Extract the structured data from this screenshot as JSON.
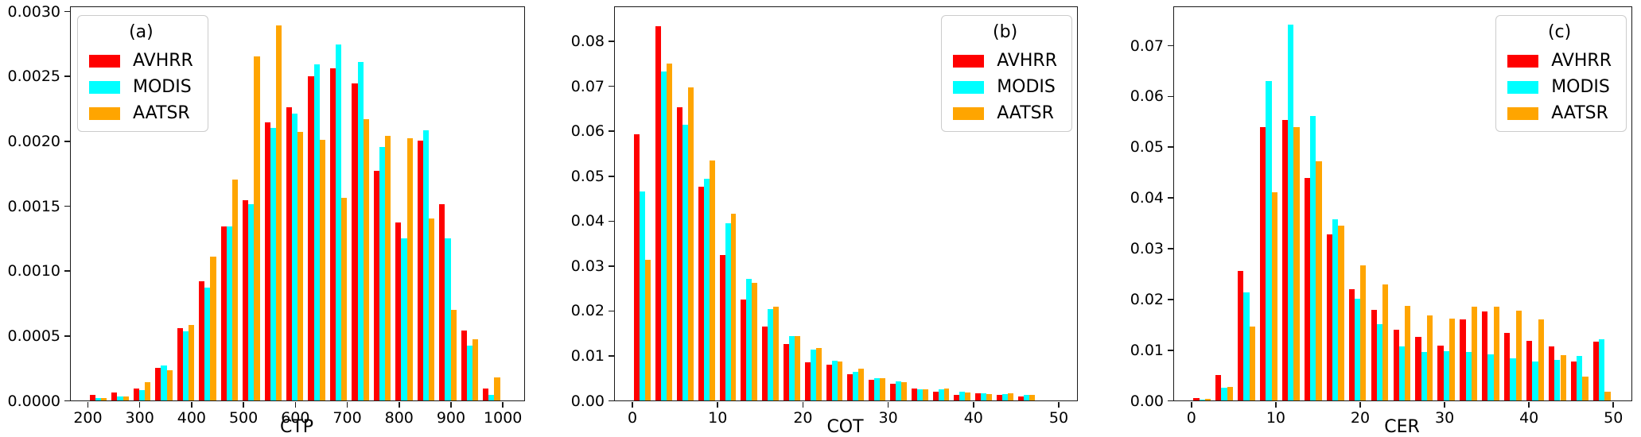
{
  "figure": {
    "background": "#ffffff",
    "series": [
      {
        "name": "AVHRR",
        "color": "#ff0000"
      },
      {
        "name": "MODIS",
        "color": "#00ffff"
      },
      {
        "name": "AATSR",
        "color": "#ffa500"
      }
    ]
  },
  "chart_data": [
    {
      "type": "bar",
      "panel_label": "(a)",
      "xlabel": "CTP",
      "legend": {
        "title": "(a)",
        "entries": [
          "AVHRR",
          "MODIS",
          "AATSR"
        ],
        "position": "top-left"
      },
      "grid": false,
      "xlim": [
        168,
        1042
      ],
      "ylim": [
        0,
        0.00303
      ],
      "xticks": [
        200,
        300,
        400,
        500,
        600,
        700,
        800,
        900,
        1000
      ],
      "xtick_labels": [
        "200",
        "300",
        "400",
        "500",
        "600",
        "700",
        "800",
        "900",
        "1000"
      ],
      "yticks": [
        0,
        0.0005,
        0.001,
        0.0015,
        0.002,
        0.0025,
        0.003
      ],
      "ytick_labels": [
        "0.0000",
        "0.0005",
        "0.0010",
        "0.0015",
        "0.0020",
        "0.0025",
        "0.0030"
      ],
      "bin_start": 200,
      "bin_width": 42.105,
      "bar_group_fill": 0.78,
      "series": [
        {
          "name": "AVHRR",
          "values": [
            4e-05,
            6e-05,
            9e-05,
            0.00025,
            0.00056,
            0.00092,
            0.00134,
            0.00154,
            0.00214,
            0.00226,
            0.0025,
            0.00256,
            0.00244,
            0.00177,
            0.00137,
            0.002,
            0.00151,
            0.00054,
            9e-05
          ]
        },
        {
          "name": "MODIS",
          "values": [
            2e-05,
            3e-05,
            8e-05,
            0.00027,
            0.00053,
            0.00087,
            0.00134,
            0.00151,
            0.0021,
            0.00221,
            0.00259,
            0.00274,
            0.00261,
            0.00195,
            0.00125,
            0.00208,
            0.00125,
            0.00042,
            4e-05
          ]
        },
        {
          "name": "AATSR",
          "values": [
            2e-05,
            3e-05,
            0.00014,
            0.00023,
            0.00058,
            0.00111,
            0.0017,
            0.00265,
            0.00289,
            0.00207,
            0.00201,
            0.00156,
            0.00217,
            0.00204,
            0.00202,
            0.0014,
            0.0007,
            0.00047,
            0.00018
          ]
        }
      ]
    },
    {
      "type": "bar",
      "panel_label": "(b)",
      "xlabel": "COT",
      "legend": {
        "title": "(b)",
        "entries": [
          "AVHRR",
          "MODIS",
          "AATSR"
        ],
        "position": "top-right"
      },
      "grid": false,
      "xlim": [
        -2,
        52.2
      ],
      "ylim": [
        0,
        0.0875
      ],
      "xticks": [
        0,
        10,
        20,
        30,
        40,
        50
      ],
      "xtick_labels": [
        "0",
        "10",
        "20",
        "30",
        "40",
        "50"
      ],
      "yticks": [
        0,
        0.01,
        0.02,
        0.03,
        0.04,
        0.05,
        0.06,
        0.07,
        0.08
      ],
      "ytick_labels": [
        "0.00",
        "0.01",
        "0.02",
        "0.03",
        "0.04",
        "0.05",
        "0.06",
        "0.07",
        "0.08"
      ],
      "bin_start": 0,
      "bin_width": 2.5,
      "bar_group_fill": 0.78,
      "series": [
        {
          "name": "AVHRR",
          "values": [
            0.0592,
            0.0833,
            0.0653,
            0.0475,
            0.0323,
            0.0225,
            0.0164,
            0.0126,
            0.0085,
            0.0079,
            0.0059,
            0.0046,
            0.0037,
            0.0026,
            0.0019,
            0.0013,
            0.0016,
            0.0013,
            0.0009
          ]
        },
        {
          "name": "MODIS",
          "values": [
            0.0465,
            0.0732,
            0.0614,
            0.0494,
            0.0394,
            0.027,
            0.0204,
            0.0143,
            0.0114,
            0.0089,
            0.0063,
            0.0049,
            0.0042,
            0.0025,
            0.0025,
            0.0019,
            0.0016,
            0.0015,
            0.0012
          ]
        },
        {
          "name": "AATSR",
          "values": [
            0.0313,
            0.0749,
            0.0696,
            0.0533,
            0.0415,
            0.0262,
            0.0209,
            0.0143,
            0.0116,
            0.0087,
            0.0071,
            0.005,
            0.004,
            0.0024,
            0.0026,
            0.0017,
            0.0014,
            0.0016,
            0.0012
          ]
        }
      ]
    },
    {
      "type": "bar",
      "panel_label": "(c)",
      "xlabel": "CER",
      "legend": {
        "title": "(c)",
        "entries": [
          "AVHRR",
          "MODIS",
          "AATSR"
        ],
        "position": "top-right"
      },
      "grid": false,
      "xlim": [
        -2,
        52.2
      ],
      "ylim": [
        0,
        0.0775
      ],
      "xticks": [
        0,
        10,
        20,
        30,
        40,
        50
      ],
      "xtick_labels": [
        "0",
        "10",
        "20",
        "30",
        "40",
        "50"
      ],
      "yticks": [
        0,
        0.01,
        0.02,
        0.03,
        0.04,
        0.05,
        0.06,
        0.07
      ],
      "ytick_labels": [
        "0.00",
        "0.01",
        "0.02",
        "0.03",
        "0.04",
        "0.05",
        "0.06",
        "0.07"
      ],
      "bin_start": 0,
      "bin_width": 2.6316,
      "bar_group_fill": 0.78,
      "series": [
        {
          "name": "AVHRR",
          "values": [
            0.0004,
            0.005,
            0.0255,
            0.0538,
            0.0553,
            0.0439,
            0.0327,
            0.0219,
            0.0179,
            0.014,
            0.0125,
            0.0108,
            0.016,
            0.0176,
            0.0133,
            0.0117,
            0.0106,
            0.0077,
            0.0116
          ]
        },
        {
          "name": "MODIS",
          "values": [
            0.0002,
            0.0025,
            0.0213,
            0.063,
            0.074,
            0.0561,
            0.0357,
            0.0201,
            0.015,
            0.0107,
            0.0095,
            0.0097,
            0.0096,
            0.0091,
            0.0083,
            0.0077,
            0.008,
            0.0088,
            0.012
          ]
        },
        {
          "name": "AATSR",
          "values": [
            0.0003,
            0.0027,
            0.0145,
            0.0411,
            0.0538,
            0.0472,
            0.0344,
            0.0266,
            0.0229,
            0.0186,
            0.0168,
            0.0161,
            0.0185,
            0.0184,
            0.0177,
            0.0159,
            0.0089,
            0.0047,
            0.0017
          ]
        }
      ]
    }
  ]
}
